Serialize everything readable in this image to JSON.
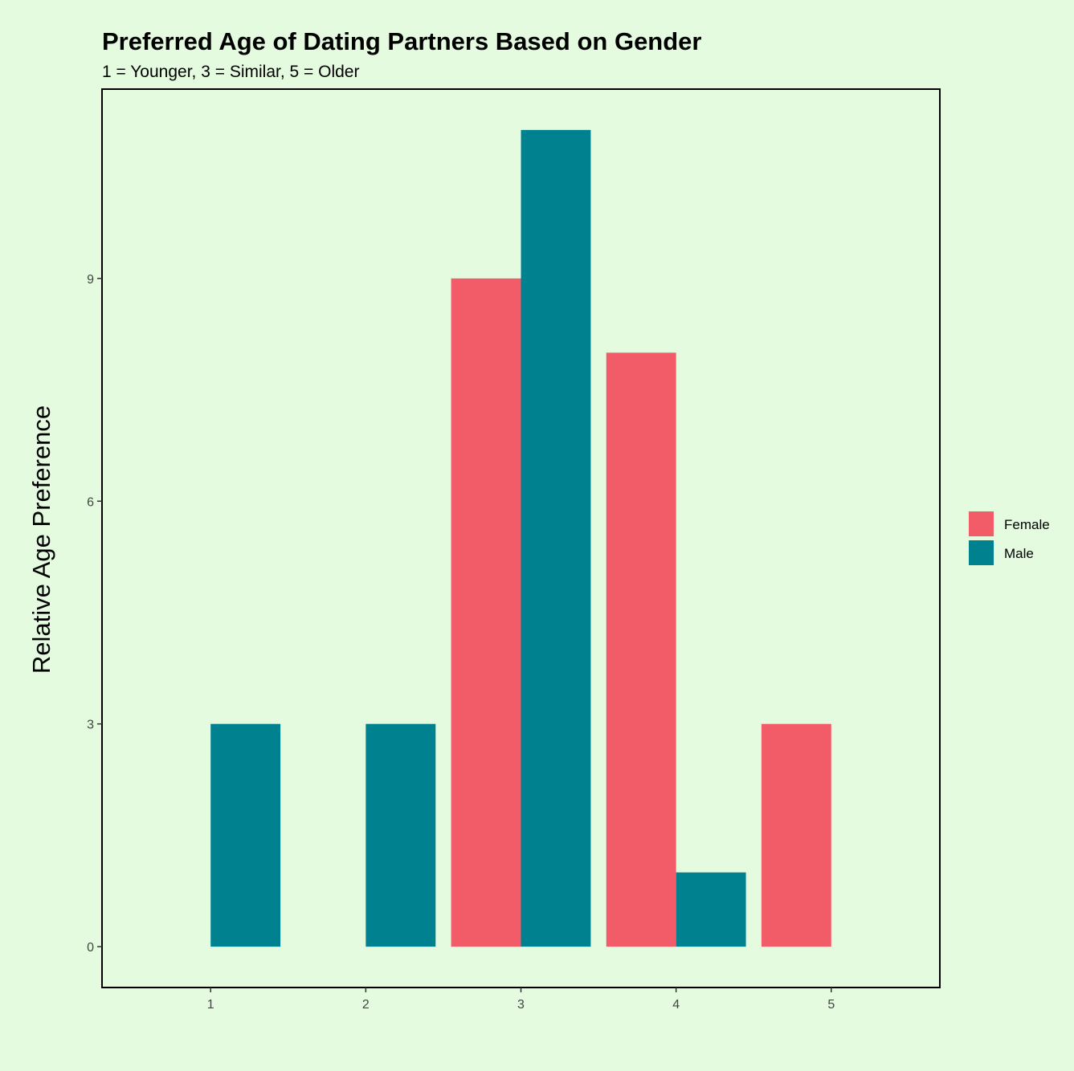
{
  "colors": {
    "background": "#e4fbe0",
    "Female": "#f25c69",
    "Male": "#008190"
  },
  "chart_data": {
    "type": "bar",
    "title": "Preferred Age of Dating Partners Based on Gender",
    "subtitle": "1 = Younger, 3 = Similar, 5 = Older",
    "xlabel": "",
    "ylabel": "Relative Age Preference",
    "categories": [
      "1",
      "2",
      "3",
      "4",
      "5"
    ],
    "yticks": [
      "0",
      "3",
      "6",
      "9"
    ],
    "ylim": [
      -0.55,
      11.55
    ],
    "series": [
      {
        "name": "Female",
        "values": [
          0,
          0,
          9,
          8,
          3
        ]
      },
      {
        "name": "Male",
        "values": [
          3,
          3,
          11,
          1,
          0
        ]
      }
    ],
    "legend_position": "right",
    "grid": false
  }
}
